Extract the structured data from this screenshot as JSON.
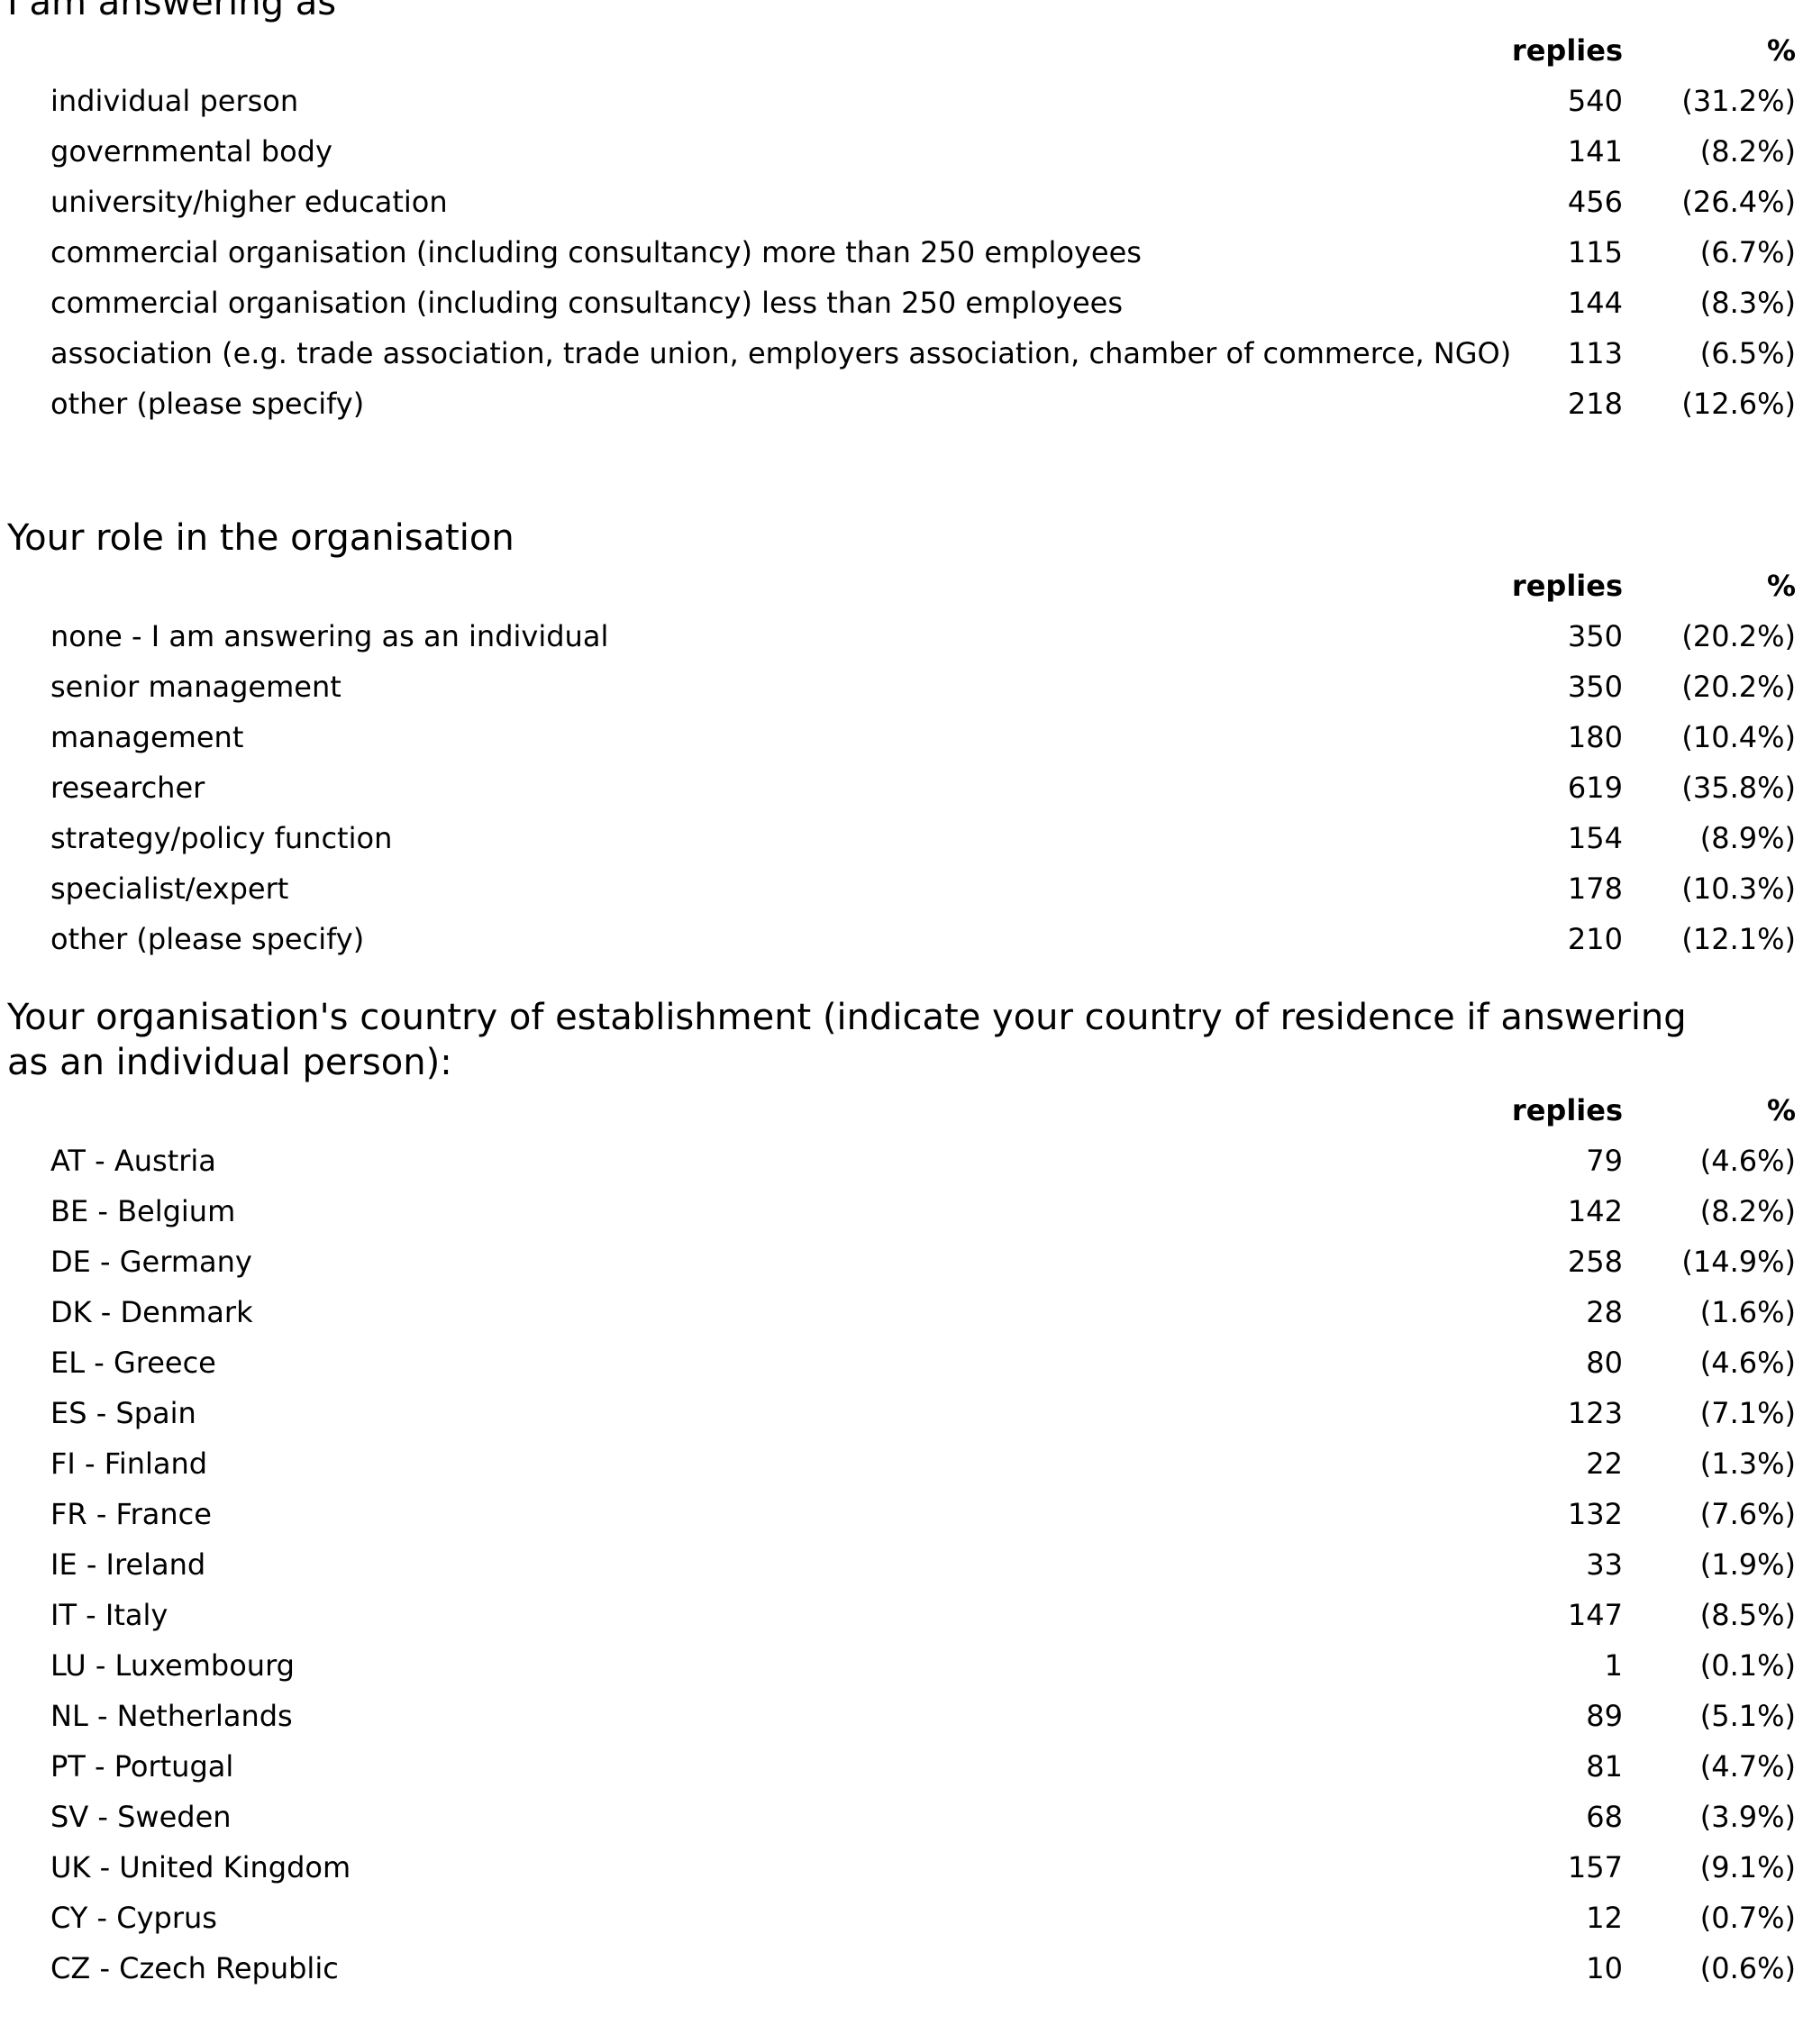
{
  "sections": [
    {
      "title": "I am answering as",
      "headers": {
        "replies": "replies",
        "percent": "%"
      },
      "rows": [
        {
          "label": "individual person",
          "replies": "540",
          "percent": "(31.2%)"
        },
        {
          "label": "governmental body",
          "replies": "141",
          "percent": "(8.2%)"
        },
        {
          "label": "university/higher education",
          "replies": "456",
          "percent": "(26.4%)"
        },
        {
          "label": "commercial organisation (including consultancy) more than 250 employees",
          "replies": "115",
          "percent": "(6.7%)"
        },
        {
          "label": "commercial organisation (including consultancy) less than 250 employees",
          "replies": "144",
          "percent": "(8.3%)"
        },
        {
          "label": "association (e.g. trade association, trade union, employers association, chamber of commerce, NGO)",
          "replies": "113",
          "percent": "(6.5%)"
        },
        {
          "label": "other (please specify)",
          "replies": "218",
          "percent": "(12.6%)"
        }
      ]
    },
    {
      "title": "Your role in the organisation",
      "headers": {
        "replies": "replies",
        "percent": "%"
      },
      "rows": [
        {
          "label": "none - I am answering as an individual",
          "replies": "350",
          "percent": "(20.2%)"
        },
        {
          "label": "senior management",
          "replies": "350",
          "percent": "(20.2%)"
        },
        {
          "label": "management",
          "replies": "180",
          "percent": "(10.4%)"
        },
        {
          "label": "researcher",
          "replies": "619",
          "percent": "(35.8%)"
        },
        {
          "label": "strategy/policy function",
          "replies": "154",
          "percent": "(8.9%)"
        },
        {
          "label": "specialist/expert",
          "replies": "178",
          "percent": "(10.3%)"
        },
        {
          "label": "other (please specify)",
          "replies": "210",
          "percent": "(12.1%)"
        }
      ]
    },
    {
      "title": "Your organisation's country of establishment (indicate your country of residence if answering as an individual person):",
      "headers": {
        "replies": "replies",
        "percent": "%"
      },
      "rows": [
        {
          "label": "AT - Austria",
          "replies": "79",
          "percent": "(4.6%)"
        },
        {
          "label": "BE - Belgium",
          "replies": "142",
          "percent": "(8.2%)"
        },
        {
          "label": "DE - Germany",
          "replies": "258",
          "percent": "(14.9%)"
        },
        {
          "label": "DK - Denmark",
          "replies": "28",
          "percent": "(1.6%)"
        },
        {
          "label": "EL - Greece",
          "replies": "80",
          "percent": "(4.6%)"
        },
        {
          "label": "ES - Spain",
          "replies": "123",
          "percent": "(7.1%)"
        },
        {
          "label": "FI - Finland",
          "replies": "22",
          "percent": "(1.3%)"
        },
        {
          "label": "FR - France",
          "replies": "132",
          "percent": "(7.6%)"
        },
        {
          "label": "IE - Ireland",
          "replies": "33",
          "percent": "(1.9%)"
        },
        {
          "label": "IT - Italy",
          "replies": "147",
          "percent": "(8.5%)"
        },
        {
          "label": "LU - Luxembourg",
          "replies": "1",
          "percent": "(0.1%)"
        },
        {
          "label": "NL - Netherlands",
          "replies": "89",
          "percent": "(5.1%)"
        },
        {
          "label": "PT - Portugal",
          "replies": "81",
          "percent": "(4.7%)"
        },
        {
          "label": "SV - Sweden",
          "replies": "68",
          "percent": "(3.9%)"
        },
        {
          "label": "UK - United Kingdom",
          "replies": "157",
          "percent": "(9.1%)"
        },
        {
          "label": "CY - Cyprus",
          "replies": "12",
          "percent": "(0.7%)"
        },
        {
          "label": "CZ - Czech Republic",
          "replies": "10",
          "percent": "(0.6%)"
        }
      ]
    }
  ]
}
